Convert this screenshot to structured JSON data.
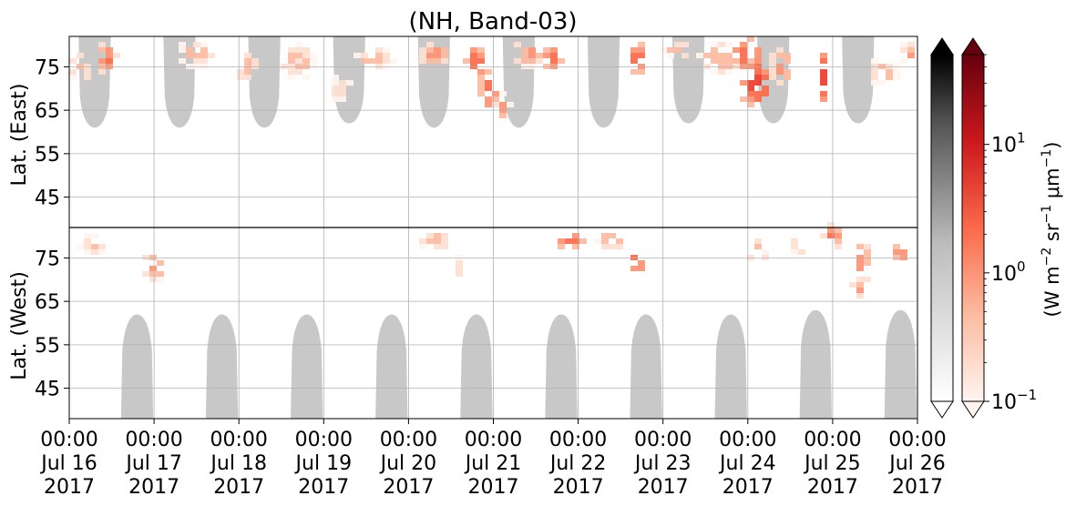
{
  "chart_data": {
    "type": "heatmap",
    "title": "(NH, Band-03)",
    "xlabel": "",
    "x_ticks": [
      {
        "line1": "00:00",
        "line2": "Jul 16",
        "line3": "2017"
      },
      {
        "line1": "00:00",
        "line2": "Jul 17",
        "line3": "2017"
      },
      {
        "line1": "00:00",
        "line2": "Jul 18",
        "line3": "2017"
      },
      {
        "line1": "00:00",
        "line2": "Jul 19",
        "line3": "2017"
      },
      {
        "line1": "00:00",
        "line2": "Jul 20",
        "line3": "2017"
      },
      {
        "line1": "00:00",
        "line2": "Jul 21",
        "line3": "2017"
      },
      {
        "line1": "00:00",
        "line2": "Jul 22",
        "line3": "2017"
      },
      {
        "line1": "00:00",
        "line2": "Jul 23",
        "line3": "2017"
      },
      {
        "line1": "00:00",
        "line2": "Jul 24",
        "line3": "2017"
      },
      {
        "line1": "00:00",
        "line2": "Jul 25",
        "line3": "2017"
      },
      {
        "line1": "00:00",
        "line2": "Jul 26",
        "line3": "2017"
      }
    ],
    "x_range_days": [
      "2017-07-16 00:00",
      "2017-07-26 00:00"
    ],
    "panels": [
      {
        "ylabel": "Lat. (East)",
        "y_ticks": [
          "45",
          "55",
          "65",
          "75"
        ],
        "ylim": [
          38,
          82
        ],
        "invert": false
      },
      {
        "ylabel": "Lat. (West)",
        "y_ticks": [
          "75",
          "65",
          "55",
          "45"
        ],
        "ylim": [
          82,
          38
        ],
        "invert": true
      }
    ],
    "divider": "horizontal line at 82°, joining East and West panels",
    "grid": true,
    "daylight_mask": {
      "east": [
        {
          "center_day": 0.3,
          "lat_edge": 61
        },
        {
          "center_day": 1.3,
          "lat_edge": 61
        },
        {
          "center_day": 2.3,
          "lat_edge": 61
        },
        {
          "center_day": 3.3,
          "lat_edge": 62
        },
        {
          "center_day": 4.3,
          "lat_edge": 61
        },
        {
          "center_day": 5.3,
          "lat_edge": 61
        },
        {
          "center_day": 6.3,
          "lat_edge": 61
        },
        {
          "center_day": 7.3,
          "lat_edge": 62
        },
        {
          "center_day": 8.3,
          "lat_edge": 62
        },
        {
          "center_day": 9.3,
          "lat_edge": 62
        }
      ],
      "west": [
        {
          "center_day": 0.8,
          "lat_edge": 62
        },
        {
          "center_day": 1.8,
          "lat_edge": 62
        },
        {
          "center_day": 2.8,
          "lat_edge": 62
        },
        {
          "center_day": 3.8,
          "lat_edge": 62
        },
        {
          "center_day": 4.8,
          "lat_edge": 62
        },
        {
          "center_day": 5.8,
          "lat_edge": 62
        },
        {
          "center_day": 6.8,
          "lat_edge": 62
        },
        {
          "center_day": 7.8,
          "lat_edge": 62
        },
        {
          "center_day": 8.8,
          "lat_edge": 63
        },
        {
          "center_day": 9.8,
          "lat_edge": 63
        }
      ],
      "color": "#c8c8c8"
    },
    "emission_blobs": [
      {
        "day": 0.15,
        "panel": "east",
        "lat": 75,
        "spread_day": 0.2,
        "spread_lat": 5,
        "value": 0.4
      },
      {
        "day": 0.45,
        "panel": "east",
        "lat": 77,
        "spread_day": 0.12,
        "spread_lat": 4,
        "value": 2.0
      },
      {
        "day": 0.3,
        "panel": "west",
        "lat": 78,
        "spread_day": 0.2,
        "spread_lat": 3,
        "value": 0.6
      },
      {
        "day": 1.0,
        "panel": "west",
        "lat": 73,
        "spread_day": 0.15,
        "spread_lat": 4,
        "value": 1.0
      },
      {
        "day": 1.5,
        "panel": "east",
        "lat": 78,
        "spread_day": 0.3,
        "spread_lat": 4,
        "value": 0.5
      },
      {
        "day": 2.1,
        "panel": "east",
        "lat": 75,
        "spread_day": 0.2,
        "spread_lat": 5,
        "value": 0.5
      },
      {
        "day": 2.7,
        "panel": "east",
        "lat": 76,
        "spread_day": 0.25,
        "spread_lat": 6,
        "value": 0.5
      },
      {
        "day": 3.2,
        "panel": "east",
        "lat": 70,
        "spread_day": 0.2,
        "spread_lat": 5,
        "value": 0.3
      },
      {
        "day": 3.6,
        "panel": "east",
        "lat": 77,
        "spread_day": 0.3,
        "spread_lat": 3,
        "value": 0.6
      },
      {
        "day": 4.3,
        "panel": "east",
        "lat": 78,
        "spread_day": 0.2,
        "spread_lat": 3,
        "value": 1.0
      },
      {
        "day": 4.3,
        "panel": "west",
        "lat": 79,
        "spread_day": 0.25,
        "spread_lat": 3,
        "value": 0.6
      },
      {
        "day": 4.6,
        "panel": "west",
        "lat": 73,
        "spread_day": 0.1,
        "spread_lat": 3,
        "value": 0.4
      },
      {
        "day": 4.8,
        "panel": "east",
        "lat": 76,
        "spread_day": 0.12,
        "spread_lat": 4,
        "value": 3.0
      },
      {
        "day": 4.95,
        "panel": "east",
        "lat": 70,
        "spread_day": 0.12,
        "spread_lat": 5,
        "value": 2.5
      },
      {
        "day": 5.1,
        "panel": "east",
        "lat": 66,
        "spread_day": 0.1,
        "spread_lat": 3,
        "value": 1.2
      },
      {
        "day": 5.4,
        "panel": "east",
        "lat": 78,
        "spread_day": 0.25,
        "spread_lat": 3,
        "value": 1.0
      },
      {
        "day": 5.7,
        "panel": "east",
        "lat": 77,
        "spread_day": 0.15,
        "spread_lat": 3,
        "value": 1.8
      },
      {
        "day": 5.9,
        "panel": "west",
        "lat": 79,
        "spread_day": 0.2,
        "spread_lat": 2,
        "value": 2.0
      },
      {
        "day": 6.4,
        "panel": "west",
        "lat": 79,
        "spread_day": 0.2,
        "spread_lat": 2,
        "value": 1.0
      },
      {
        "day": 6.7,
        "panel": "east",
        "lat": 77,
        "spread_day": 0.1,
        "spread_lat": 4,
        "value": 3.0
      },
      {
        "day": 6.7,
        "panel": "west",
        "lat": 75,
        "spread_day": 0.1,
        "spread_lat": 4,
        "value": 2.5
      },
      {
        "day": 7.2,
        "panel": "east",
        "lat": 79,
        "spread_day": 0.25,
        "spread_lat": 2,
        "value": 0.6
      },
      {
        "day": 7.7,
        "panel": "east",
        "lat": 77,
        "spread_day": 0.3,
        "spread_lat": 4,
        "value": 0.8
      },
      {
        "day": 8.1,
        "panel": "east",
        "lat": 71,
        "spread_day": 0.2,
        "spread_lat": 6,
        "value": 3.5
      },
      {
        "day": 8.0,
        "panel": "east",
        "lat": 78,
        "spread_day": 0.2,
        "spread_lat": 4,
        "value": 2.5
      },
      {
        "day": 8.1,
        "panel": "west",
        "lat": 76,
        "spread_day": 0.15,
        "spread_lat": 4,
        "value": 0.6
      },
      {
        "day": 8.4,
        "panel": "east",
        "lat": 75,
        "spread_day": 0.15,
        "spread_lat": 5,
        "value": 1.0
      },
      {
        "day": 8.6,
        "panel": "west",
        "lat": 78,
        "spread_day": 0.1,
        "spread_lat": 4,
        "value": 0.5
      },
      {
        "day": 8.9,
        "panel": "east",
        "lat": 72,
        "spread_day": 0.08,
        "spread_lat": 7,
        "value": 4.0
      },
      {
        "day": 9.0,
        "panel": "west",
        "lat": 80,
        "spread_day": 0.12,
        "spread_lat": 3,
        "value": 2.0
      },
      {
        "day": 9.35,
        "panel": "west",
        "lat": 74,
        "spread_day": 0.1,
        "spread_lat": 6,
        "value": 1.5
      },
      {
        "day": 9.3,
        "panel": "west",
        "lat": 68,
        "spread_day": 0.08,
        "spread_lat": 3,
        "value": 0.8
      },
      {
        "day": 9.6,
        "panel": "east",
        "lat": 74,
        "spread_day": 0.2,
        "spread_lat": 4,
        "value": 0.6
      },
      {
        "day": 9.8,
        "panel": "west",
        "lat": 76,
        "spread_day": 0.1,
        "spread_lat": 3,
        "value": 1.2
      },
      {
        "day": 9.9,
        "panel": "east",
        "lat": 78,
        "spread_day": 0.1,
        "spread_lat": 3,
        "value": 0.8
      }
    ],
    "colorbar_gray": {
      "cmap": "Greys",
      "extend": "both"
    },
    "colorbar_red": {
      "cmap": "Reds",
      "extend": "both",
      "scale": "log",
      "range": [
        0.1,
        50
      ],
      "ticks": [
        {
          "value": 0.1,
          "base": "10",
          "exp": "−1"
        },
        {
          "value": 1,
          "base": "10",
          "exp": "0"
        },
        {
          "value": 10,
          "base": "10",
          "exp": "1"
        }
      ],
      "label": {
        "open": "(W m",
        "e1": "−2",
        "mid1": " sr",
        "e2": "−1",
        "mid2": " μm",
        "e3": "−1",
        "close": ")"
      }
    }
  }
}
